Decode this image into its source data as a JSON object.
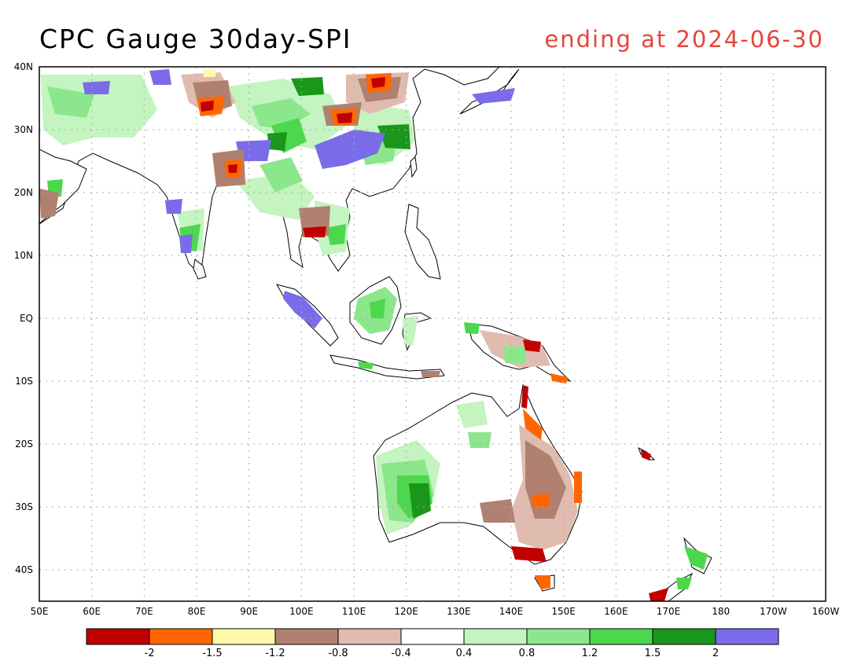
{
  "title": "CPC Gauge 30day-SPI",
  "subtitle": "ending at 2024-06-30",
  "map": {
    "lat_labels": [
      "40N",
      "30N",
      "20N",
      "10N",
      "EQ",
      "10S",
      "20S",
      "30S",
      "40S"
    ],
    "lon_labels": [
      "50E",
      "60E",
      "70E",
      "80E",
      "90E",
      "100E",
      "110E",
      "120E",
      "130E",
      "140E",
      "150E",
      "160E",
      "170E",
      "180",
      "170W",
      "160W"
    ]
  },
  "legend": {
    "colors": [
      "#c00000",
      "#ff6600",
      "#fff8a8",
      "#b08070",
      "#e0bcb0",
      "#ffffff",
      "#c4f4c0",
      "#8ce68c",
      "#4cd84c",
      "#1a961a",
      "#7a6ce8"
    ],
    "labels": [
      "-2",
      "-1.5",
      "-1.2",
      "-0.8",
      "-0.4",
      "0.4",
      "0.8",
      "1.2",
      "1.5",
      "2"
    ]
  }
}
